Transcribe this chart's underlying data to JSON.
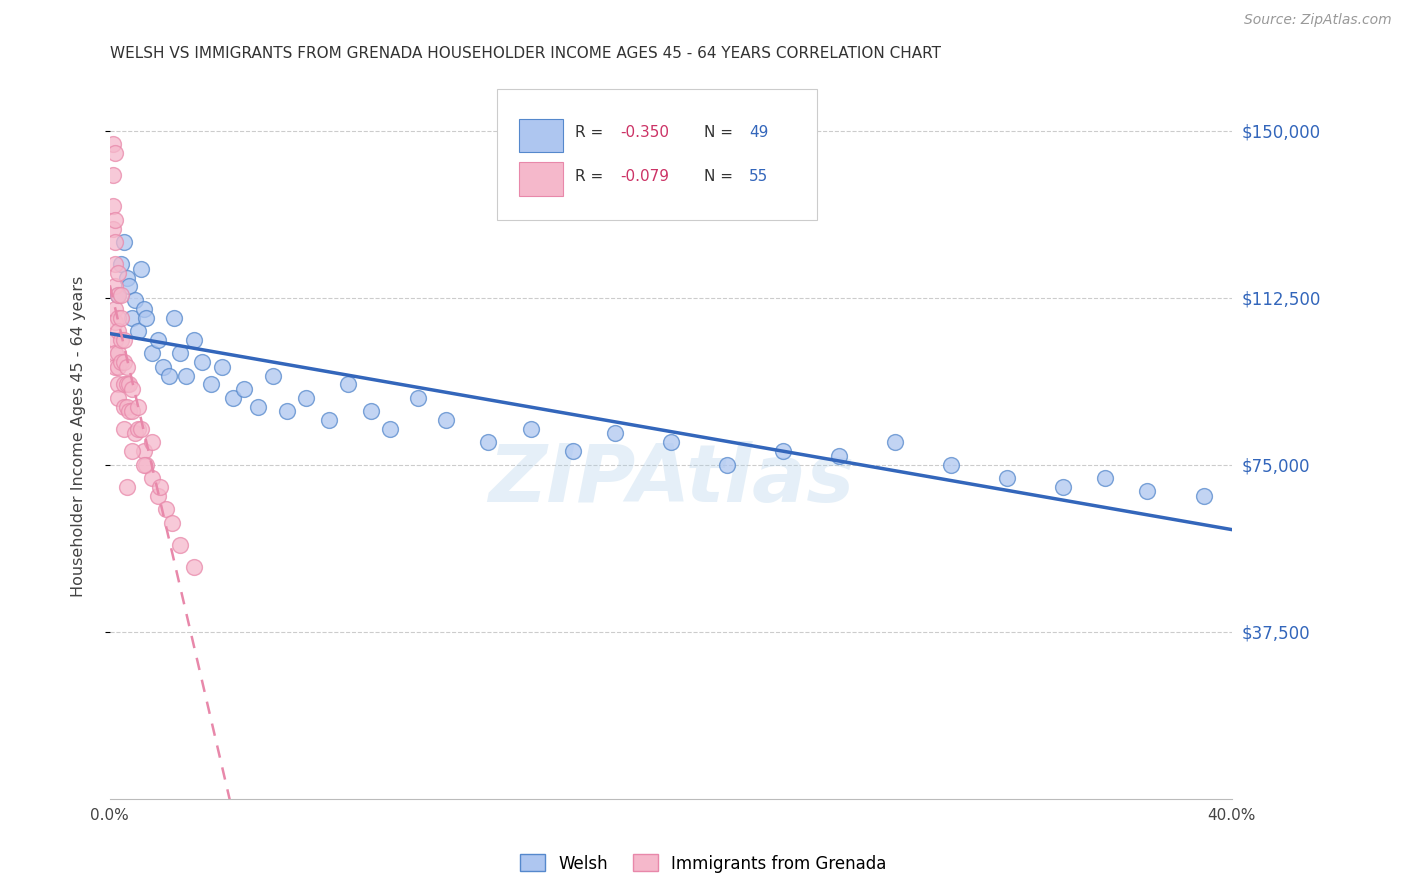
{
  "title": "WELSH VS IMMIGRANTS FROM GRENADA HOUSEHOLDER INCOME AGES 45 - 64 YEARS CORRELATION CHART",
  "source": "Source: ZipAtlas.com",
  "ylabel": "Householder Income Ages 45 - 64 years",
  "x_min": 0.0,
  "x_max": 0.4,
  "y_min": 0,
  "y_max": 162500,
  "yticks": [
    37500,
    75000,
    112500,
    150000
  ],
  "ytick_labels": [
    "$37,500",
    "$75,000",
    "$112,500",
    "$150,000"
  ],
  "xticks": [
    0.0,
    0.05,
    0.1,
    0.15,
    0.2,
    0.25,
    0.3,
    0.35,
    0.4
  ],
  "xtick_labels": [
    "0.0%",
    "",
    "",
    "",
    "",
    "",
    "",
    "",
    "40.0%"
  ],
  "welsh_color": "#aec6f0",
  "grenada_color": "#f5b8cb",
  "welsh_edge_color": "#5588cc",
  "grenada_edge_color": "#e888aa",
  "welsh_line_color": "#3366bb",
  "grenada_line_color": "#e888aa",
  "right_axis_color": "#3366bb",
  "legend_R_color": "#cc3366",
  "legend_N_color": "#3366bb",
  "watermark": "ZIPAtlas",
  "welsh_R": -0.35,
  "welsh_N": 49,
  "grenada_R": -0.079,
  "grenada_N": 55,
  "welsh_x": [
    0.003,
    0.004,
    0.005,
    0.006,
    0.007,
    0.008,
    0.009,
    0.01,
    0.011,
    0.012,
    0.013,
    0.015,
    0.017,
    0.019,
    0.021,
    0.023,
    0.025,
    0.027,
    0.03,
    0.033,
    0.036,
    0.04,
    0.044,
    0.048,
    0.053,
    0.058,
    0.063,
    0.07,
    0.078,
    0.085,
    0.093,
    0.1,
    0.11,
    0.12,
    0.135,
    0.15,
    0.165,
    0.18,
    0.2,
    0.22,
    0.24,
    0.26,
    0.28,
    0.3,
    0.32,
    0.34,
    0.355,
    0.37,
    0.39
  ],
  "welsh_y": [
    113000,
    120000,
    125000,
    117000,
    115000,
    108000,
    112000,
    105000,
    119000,
    110000,
    108000,
    100000,
    103000,
    97000,
    95000,
    108000,
    100000,
    95000,
    103000,
    98000,
    93000,
    97000,
    90000,
    92000,
    88000,
    95000,
    87000,
    90000,
    85000,
    93000,
    87000,
    83000,
    90000,
    85000,
    80000,
    83000,
    78000,
    82000,
    80000,
    75000,
    78000,
    77000,
    80000,
    75000,
    72000,
    70000,
    72000,
    69000,
    68000
  ],
  "grenada_x": [
    0.001,
    0.001,
    0.001,
    0.001,
    0.002,
    0.002,
    0.002,
    0.002,
    0.002,
    0.002,
    0.002,
    0.002,
    0.002,
    0.002,
    0.003,
    0.003,
    0.003,
    0.003,
    0.003,
    0.003,
    0.003,
    0.003,
    0.004,
    0.004,
    0.004,
    0.004,
    0.005,
    0.005,
    0.005,
    0.005,
    0.005,
    0.006,
    0.006,
    0.006,
    0.007,
    0.007,
    0.008,
    0.008,
    0.009,
    0.01,
    0.01,
    0.011,
    0.012,
    0.013,
    0.015,
    0.017,
    0.02,
    0.022,
    0.025,
    0.03,
    0.015,
    0.012,
    0.018,
    0.008,
    0.006
  ],
  "grenada_y": [
    147000,
    140000,
    133000,
    128000,
    130000,
    125000,
    120000,
    115000,
    110000,
    107000,
    103000,
    100000,
    97000,
    145000,
    118000,
    113000,
    108000,
    105000,
    100000,
    97000,
    93000,
    90000,
    113000,
    108000,
    103000,
    98000,
    103000,
    98000,
    93000,
    88000,
    83000,
    97000,
    93000,
    88000,
    93000,
    87000,
    92000,
    87000,
    82000,
    88000,
    83000,
    83000,
    78000,
    75000,
    72000,
    68000,
    65000,
    62000,
    57000,
    52000,
    80000,
    75000,
    70000,
    78000,
    70000
  ]
}
